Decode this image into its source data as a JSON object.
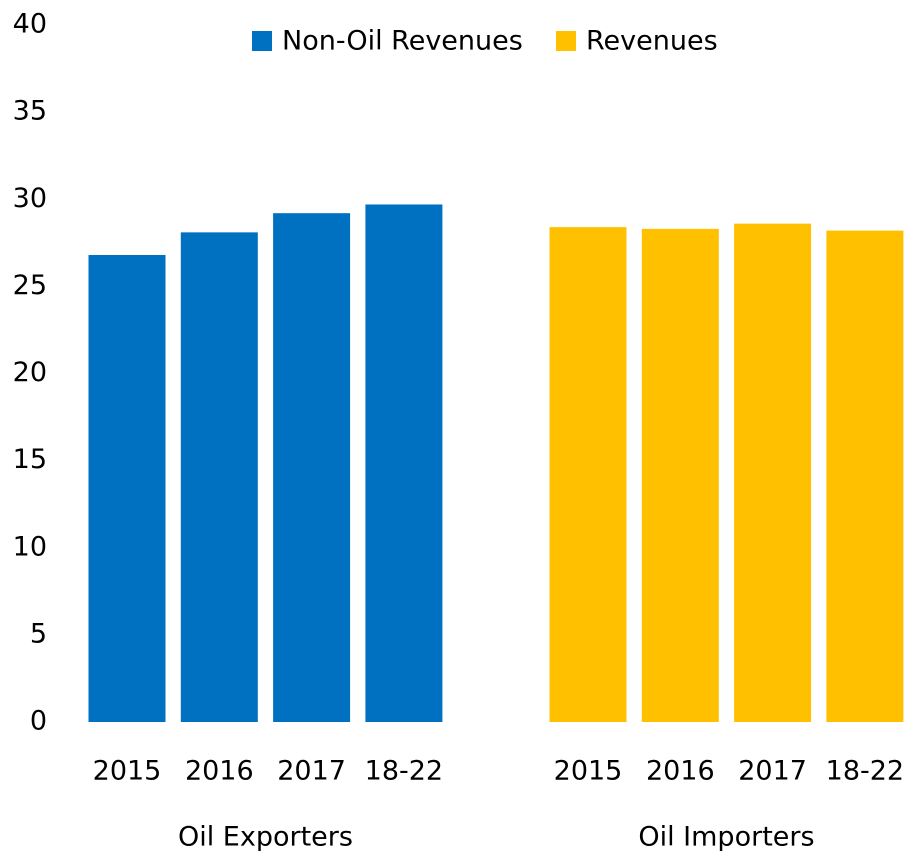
{
  "chart_data": {
    "type": "bar",
    "groups": [
      {
        "label": "Oil Exporters",
        "categories": [
          "2015",
          "2016",
          "2017",
          "18-22"
        ]
      },
      {
        "label": "Oil Importers",
        "categories": [
          "2015",
          "2016",
          "2017",
          "18-22"
        ]
      }
    ],
    "series": [
      {
        "name": "Non-Oil Revenues",
        "color": "#0070c0",
        "values": [
          26.8,
          28.1,
          29.2,
          29.7,
          null,
          null,
          null,
          null
        ]
      },
      {
        "name": "Revenues",
        "color": "#ffc000",
        "values": [
          null,
          null,
          null,
          null,
          28.4,
          28.3,
          28.6,
          28.2
        ]
      }
    ],
    "ylim": [
      0,
      40
    ],
    "yticks": [
      0,
      5,
      10,
      15,
      20,
      25,
      30,
      35,
      40
    ],
    "grid": false,
    "legend": "top"
  }
}
